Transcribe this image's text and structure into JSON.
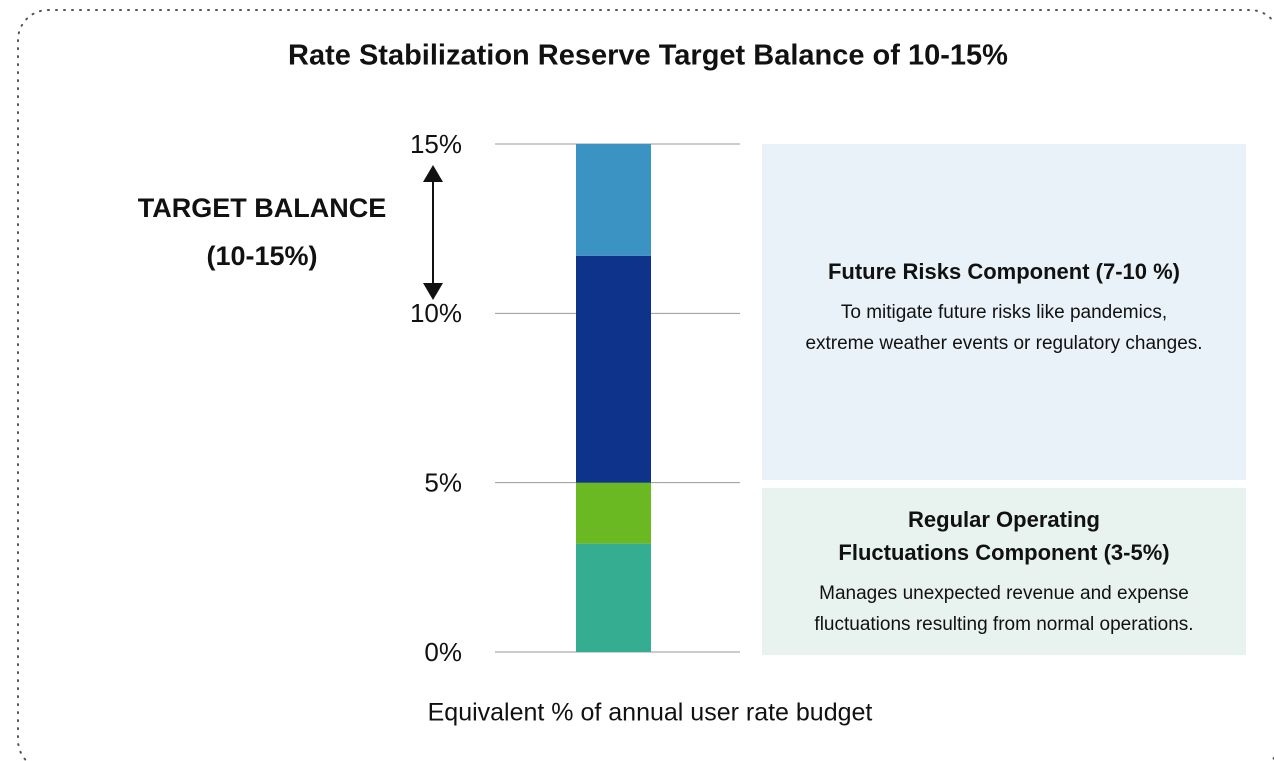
{
  "chart_data": {
    "type": "stacked-bar",
    "title": "Rate Stabilization Reserve Target Balance of 10-15%",
    "x_label": "Equivalent % of annual user rate budget",
    "target_label": [
      "TARGET BALANCE",
      "(10-15%)"
    ],
    "series": [
      {
        "color": "#35ad91",
        "values": [
          3.2
        ]
      },
      {
        "color": "#6bb922",
        "values": [
          1.8
        ]
      },
      {
        "color": "#0e338b",
        "values": [
          6.7
        ]
      },
      {
        "color": "#3a93c3",
        "values": [
          3.3
        ]
      }
    ],
    "ylim": [
      0,
      15
    ],
    "yticks": [
      {
        "value": 0,
        "label": "0%"
      },
      {
        "value": 5,
        "label": "5%"
      },
      {
        "value": 10,
        "label": "10%"
      },
      {
        "value": 15,
        "label": "15%"
      }
    ],
    "grid": true,
    "annotations": [
      {
        "title": [
          "Future Risks Component (7-10 %)"
        ],
        "text": [
          "To mitigate future risks like pandemics,",
          "extreme weather events or regulatory changes."
        ]
      },
      {
        "title": [
          "Regular Operating",
          "Fluctuations Component (3-5%)"
        ],
        "text": [
          "Manages unexpected revenue and expense",
          "fluctuations resulting from normal operations."
        ]
      }
    ]
  }
}
